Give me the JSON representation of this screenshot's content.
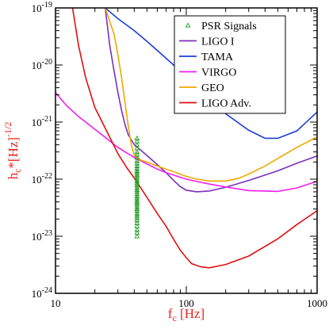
{
  "chart_data": {
    "type": "line",
    "title": "",
    "xlabel": "f_c [Hz]",
    "ylabel": "h_c*[Hz]^-1/2",
    "x_scale": "log",
    "y_scale": "log",
    "xlim": [
      10,
      1000
    ],
    "ylim": [
      1e-24,
      1e-19
    ],
    "grid": false,
    "legend_position": "top-right",
    "x_ticks": [
      {
        "value": 10,
        "label": "10"
      },
      {
        "value": 100,
        "label": "100"
      },
      {
        "value": 1000,
        "label": "1000"
      }
    ],
    "y_ticks": [
      {
        "value": 1e-24,
        "base": "10",
        "exp": "-24"
      },
      {
        "value": 1e-23,
        "base": "10",
        "exp": "-23"
      },
      {
        "value": 1e-22,
        "base": "10",
        "exp": "-22"
      },
      {
        "value": 1e-21,
        "base": "10",
        "exp": "-21"
      },
      {
        "value": 1e-20,
        "base": "10",
        "exp": "-20"
      },
      {
        "value": 1e-19,
        "base": "10",
        "exp": "-19"
      }
    ],
    "series": [
      {
        "name": "PSR Signals",
        "kind": "scatter",
        "marker": "triangle-open",
        "color": "#1f9a1f",
        "x": [
          42,
          42,
          42,
          42,
          42,
          42,
          42,
          42,
          42,
          42,
          42,
          42,
          42,
          42,
          42,
          42,
          42,
          42,
          42,
          42,
          42,
          42,
          42,
          42,
          42,
          42,
          42,
          42,
          42,
          42,
          42,
          42,
          42,
          42,
          42,
          42,
          42,
          42,
          42,
          42
        ],
        "y": [
          5.2e-22,
          4.6e-22,
          4e-22,
          3.5e-22,
          3e-22,
          2.7e-22,
          2.4e-22,
          2.1e-22,
          1.9e-22,
          1.7e-22,
          1.55e-22,
          1.4e-22,
          1.3e-22,
          1.2e-22,
          1.1e-22,
          1e-22,
          9.2e-23,
          8.5e-23,
          7.8e-23,
          7.1e-23,
          6.5e-23,
          6e-23,
          5.5e-23,
          5e-23,
          4.6e-23,
          4.2e-23,
          3.9e-23,
          3.6e-23,
          3.3e-23,
          3e-23,
          2.8e-23,
          2.5e-23,
          2.3e-23,
          2.1e-23,
          1.9e-23,
          1.7e-23,
          1.5e-23,
          1.3e-23,
          1.15e-23,
          1e-23
        ]
      },
      {
        "name": "LIGO I",
        "kind": "line",
        "color": "#7b2fbe",
        "x": [
          24,
          26,
          28,
          30,
          32,
          34,
          36,
          40,
          45,
          50,
          60,
          70,
          80,
          90,
          100,
          120,
          150,
          200,
          300,
          500,
          700,
          1000
        ],
        "y": [
          1e-19,
          2.2e-20,
          8e-21,
          3.3e-21,
          1.6e-21,
          9e-22,
          6e-22,
          4e-22,
          3.2e-22,
          2.6e-22,
          1.8e-22,
          1.3e-22,
          9.5e-23,
          7.4e-23,
          6.4e-23,
          6e-23,
          6.2e-23,
          7.2e-23,
          9.5e-23,
          1.4e-22,
          1.9e-22,
          2.55e-22
        ]
      },
      {
        "name": "TAMA",
        "kind": "line",
        "color": "#1a3fd6",
        "x": [
          24,
          30,
          40,
          50,
          60,
          80,
          100,
          150,
          200,
          300,
          400,
          500,
          700,
          1000
        ],
        "y": [
          1e-19,
          6.5e-20,
          4e-20,
          2.6e-20,
          1.8e-20,
          1e-20,
          6.2e-21,
          2.5e-21,
          1.4e-21,
          7.2e-22,
          5.2e-22,
          5.2e-22,
          7e-22,
          1.5e-21
        ]
      },
      {
        "name": "VIRGO",
        "kind": "line",
        "color": "#f020f0",
        "x": [
          10,
          12,
          15,
          20,
          25,
          30,
          40,
          50,
          60,
          70,
          100,
          150,
          200,
          300,
          500,
          700,
          1000
        ],
        "y": [
          3.3e-21,
          2e-21,
          1.25e-21,
          7.5e-22,
          5e-22,
          3.6e-22,
          2.4e-22,
          1.85e-22,
          1.5e-22,
          1.3e-22,
          1e-22,
          8.2e-23,
          7.3e-23,
          6.3e-23,
          6.1e-23,
          7e-23,
          9.2e-23
        ]
      },
      {
        "name": "GEO",
        "kind": "line",
        "color": "#f0a800",
        "x": [
          24,
          28,
          30,
          32,
          34,
          36,
          38,
          40,
          45,
          50,
          60,
          70,
          80,
          100,
          120,
          150,
          200,
          250,
          300,
          400,
          500,
          700,
          1000
        ],
        "y": [
          1e-19,
          3.5e-20,
          1.5e-20,
          6e-21,
          2.2e-21,
          8.5e-22,
          4e-22,
          2.6e-22,
          2.15e-22,
          2e-22,
          1.7e-22,
          1.5e-22,
          1.35e-22,
          1.12e-22,
          1e-22,
          9.3e-23,
          9.3e-23,
          1.03e-22,
          1.23e-22,
          1.7e-22,
          2.3e-22,
          3.6e-22,
          5.5e-22
        ]
      },
      {
        "name": "LIGO Adv.",
        "kind": "line",
        "color": "#e01010",
        "x": [
          13.5,
          15,
          17,
          20,
          25,
          30,
          35,
          40,
          50,
          60,
          70,
          80,
          90,
          100,
          110,
          130,
          150,
          200,
          300,
          500,
          700,
          1000
        ],
        "y": [
          1e-19,
          2.2e-20,
          6e-21,
          1.8e-21,
          6.5e-22,
          2.8e-22,
          1.6e-22,
          1.05e-22,
          4.8e-23,
          2.5e-23,
          1.5e-23,
          8.8e-24,
          5.7e-24,
          4.2e-24,
          3.3e-24,
          2.9e-24,
          2.8e-24,
          3.2e-24,
          4.5e-24,
          9e-24,
          1.6e-23,
          2.8e-23
        ]
      }
    ]
  }
}
